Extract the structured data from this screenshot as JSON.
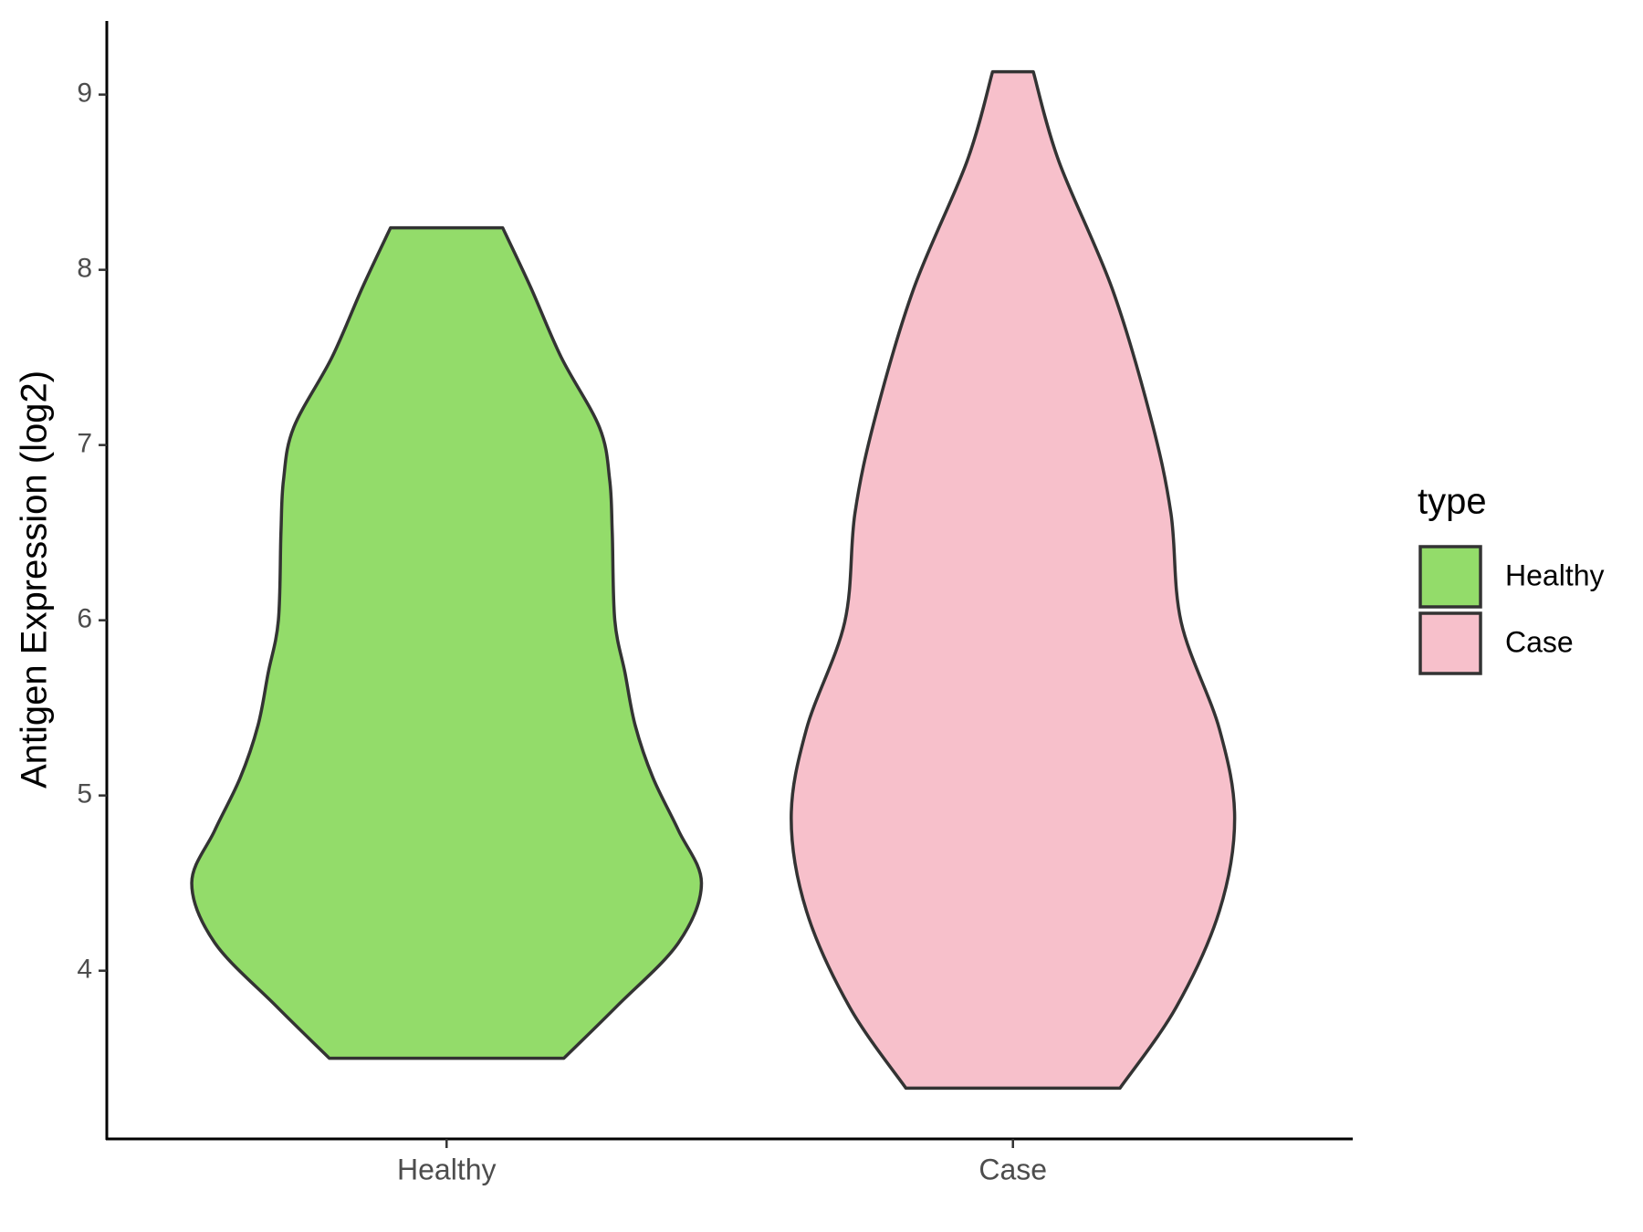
{
  "chart_data": {
    "type": "violin",
    "y_label": "Antigen Expression (log2)",
    "categories": [
      "Healthy",
      "Case"
    ],
    "legend_title": "type",
    "legend_position": "right",
    "series": [
      {
        "name": "Healthy",
        "color": "#93dc6a",
        "y": [
          3.5,
          3.8,
          4.16,
          4.5,
          4.8,
          5.1,
          5.4,
          5.7,
          6.0,
          6.5,
          6.8,
          7.1,
          7.5,
          7.9,
          8.24
        ],
        "density": [
          0.46,
          0.67,
          0.91,
          1.0,
          0.91,
          0.81,
          0.74,
          0.7,
          0.66,
          0.65,
          0.64,
          0.6,
          0.45,
          0.33,
          0.22
        ]
      },
      {
        "name": "Case",
        "color": "#f7c0cb",
        "y": [
          3.33,
          3.79,
          4.34,
          4.87,
          5.38,
          5.99,
          6.61,
          7.16,
          7.89,
          8.62,
          9.13
        ],
        "density": [
          0.42,
          0.64,
          0.81,
          0.87,
          0.81,
          0.66,
          0.62,
          0.54,
          0.39,
          0.18,
          0.08
        ]
      }
    ],
    "ylim": [
      3.04,
      9.42
    ],
    "yticks": [
      4,
      5,
      6,
      7,
      8,
      9
    ],
    "grid": false
  }
}
